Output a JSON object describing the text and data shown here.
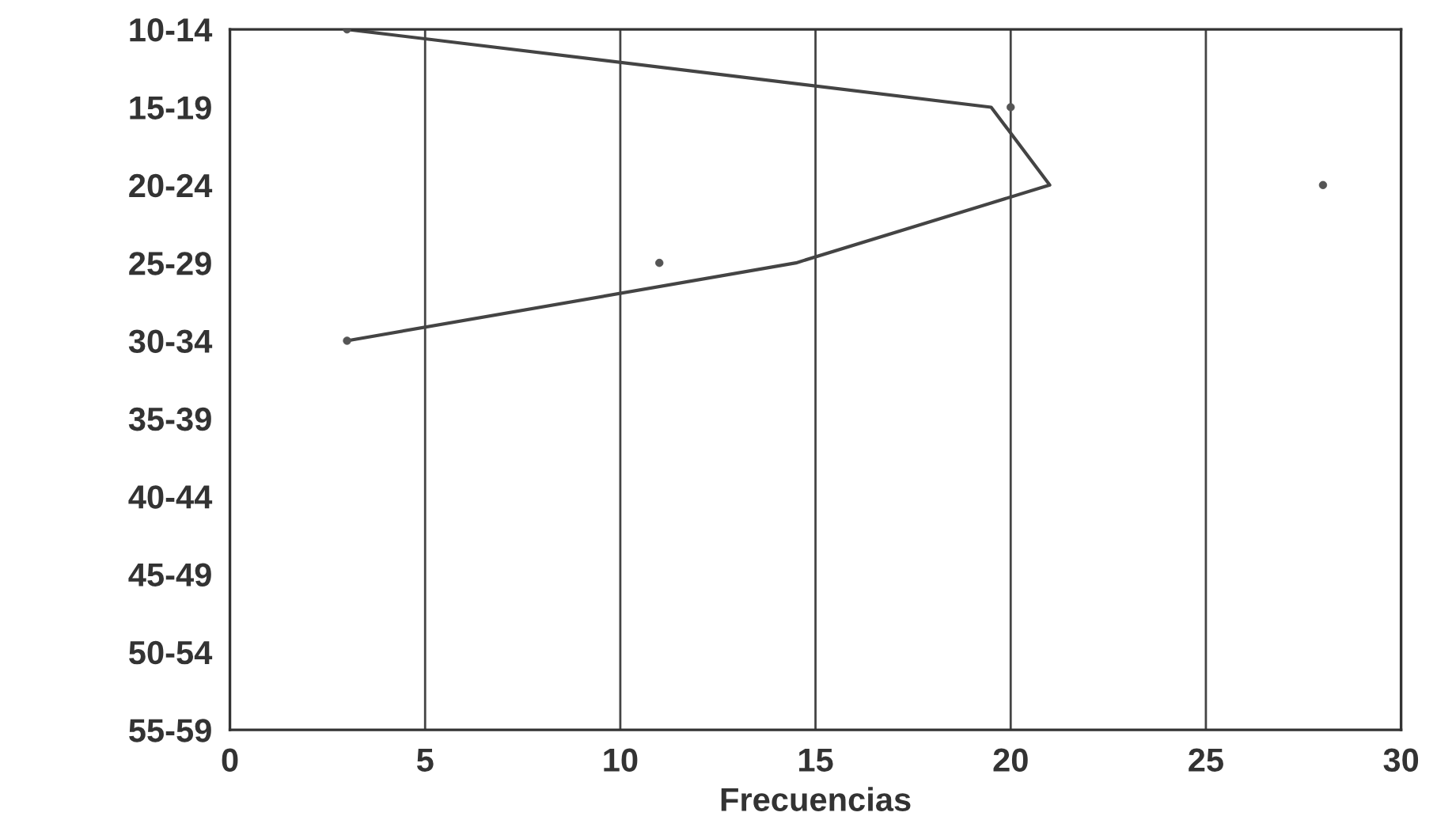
{
  "chart_data": {
    "type": "scatter",
    "orientation": "horizontal",
    "xlabel": "Frecuencias",
    "categories": [
      "10-14",
      "15-19",
      "20-24",
      "25-29",
      "30-34",
      "35-39",
      "40-44",
      "45-49",
      "50-54",
      "55-59"
    ],
    "series": [
      {
        "type": "scatter",
        "color": "#555555",
        "marker": "circle",
        "values": [
          3,
          20,
          28,
          11,
          3,
          null,
          null,
          null,
          null,
          null
        ]
      },
      {
        "type": "line",
        "color": "#444444",
        "marker": "none",
        "line_style": "solid",
        "values": [
          3,
          19.5,
          21,
          14.5,
          3,
          null,
          null,
          null,
          null,
          null
        ]
      }
    ],
    "xlim": [
      0,
      30
    ],
    "xticks": [
      0,
      5,
      10,
      15,
      20,
      25,
      30
    ],
    "grid": "x"
  }
}
